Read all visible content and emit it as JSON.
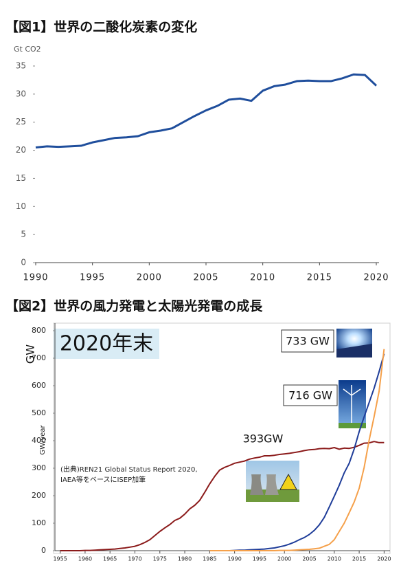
{
  "chart_data": [
    {
      "type": "line",
      "title": "【図1】世界の二酸化炭素の変化",
      "ylabel": "Gt CO2",
      "x": [
        1990,
        1991,
        1992,
        1993,
        1994,
        1995,
        1996,
        1997,
        1998,
        1999,
        2000,
        2001,
        2002,
        2003,
        2004,
        2005,
        2006,
        2007,
        2008,
        2009,
        2010,
        2011,
        2012,
        2013,
        2014,
        2015,
        2016,
        2017,
        2018,
        2019,
        2020
      ],
      "values": [
        20.5,
        20.7,
        20.6,
        20.7,
        20.8,
        21.4,
        21.8,
        22.2,
        22.3,
        22.5,
        23.2,
        23.5,
        23.9,
        25.0,
        26.1,
        27.1,
        27.9,
        29.0,
        29.2,
        28.8,
        30.6,
        31.4,
        31.7,
        32.3,
        32.4,
        32.3,
        32.3,
        32.8,
        33.5,
        33.4,
        31.5
      ],
      "color": "#1f4e9c",
      "xlim": [
        1990,
        2020
      ],
      "xticks": [
        1990,
        1995,
        2000,
        2005,
        2010,
        2015,
        2020
      ],
      "ylim": [
        0,
        35
      ],
      "yticks": [
        0,
        5,
        10,
        15,
        20,
        25,
        30,
        35
      ],
      "grid": false
    },
    {
      "type": "line",
      "title": "【図2】世界の風力発電と太陽光発電の成長",
      "ylabel": "GW/year",
      "annotations": [
        "GW",
        "2020年末",
        "733 GW",
        "716 GW",
        "393GW"
      ],
      "source": [
        "(出典)REN21 Global Status Report 2020,",
        "IAEA等をベースにISEP加筆"
      ],
      "x": [
        1955,
        1956,
        1957,
        1958,
        1959,
        1960,
        1961,
        1962,
        1963,
        1964,
        1965,
        1966,
        1967,
        1968,
        1969,
        1970,
        1971,
        1972,
        1973,
        1974,
        1975,
        1976,
        1977,
        1978,
        1979,
        1980,
        1981,
        1982,
        1983,
        1984,
        1985,
        1986,
        1987,
        1988,
        1989,
        1990,
        1991,
        1992,
        1993,
        1994,
        1995,
        1996,
        1997,
        1998,
        1999,
        2000,
        2001,
        2002,
        2003,
        2004,
        2005,
        2006,
        2007,
        2008,
        2009,
        2010,
        2011,
        2012,
        2013,
        2014,
        2015,
        2016,
        2017,
        2018,
        2019,
        2020
      ],
      "series": [
        {
          "color": "#8b1a1a",
          "values": [
            0,
            0,
            0,
            0,
            0,
            1,
            1,
            2,
            3,
            4,
            5,
            6,
            8,
            10,
            13,
            16,
            22,
            30,
            40,
            55,
            70,
            83,
            95,
            110,
            118,
            133,
            152,
            165,
            183,
            212,
            243,
            270,
            293,
            303,
            310,
            318,
            322,
            326,
            333,
            337,
            340,
            345,
            345,
            347,
            350,
            352,
            354,
            357,
            360,
            364,
            367,
            368,
            371,
            372,
            371,
            375,
            369,
            373,
            372,
            376,
            383,
            391,
            392,
            397,
            393,
            393
          ]
        },
        {
          "color": "#1f3d99",
          "values": [
            null,
            null,
            null,
            null,
            null,
            null,
            null,
            null,
            null,
            null,
            null,
            null,
            null,
            null,
            null,
            null,
            null,
            null,
            null,
            null,
            null,
            null,
            null,
            null,
            null,
            null,
            null,
            null,
            null,
            null,
            0,
            0,
            0,
            0,
            0,
            1,
            2,
            2,
            3,
            4,
            5,
            6,
            8,
            10,
            14,
            18,
            24,
            31,
            40,
            48,
            59,
            74,
            94,
            121,
            159,
            198,
            238,
            283,
            318,
            370,
            433,
            487,
            539,
            591,
            651,
            716
          ]
        },
        {
          "color": "#f5a04a",
          "values": [
            null,
            null,
            null,
            null,
            null,
            null,
            null,
            null,
            null,
            null,
            null,
            null,
            null,
            null,
            null,
            null,
            null,
            null,
            null,
            null,
            null,
            null,
            null,
            null,
            null,
            null,
            null,
            null,
            null,
            null,
            0,
            0,
            0,
            0,
            0,
            0,
            0,
            0,
            0,
            0,
            0,
            0,
            0,
            0,
            1,
            1,
            1,
            2,
            3,
            4,
            5,
            7,
            9,
            16,
            23,
            40,
            70,
            100,
            138,
            177,
            227,
            303,
            402,
            488,
            580,
            733
          ]
        }
      ],
      "xlim": [
        1954.5,
        2020.5
      ],
      "xticks": [
        1955,
        1960,
        1965,
        1970,
        1975,
        1980,
        1985,
        1990,
        1995,
        2000,
        2005,
        2010,
        2015,
        2020
      ],
      "ylim": [
        0,
        800
      ],
      "yticks": [
        0,
        100,
        200,
        300,
        400,
        500,
        600,
        700,
        800
      ],
      "grid": false
    }
  ]
}
